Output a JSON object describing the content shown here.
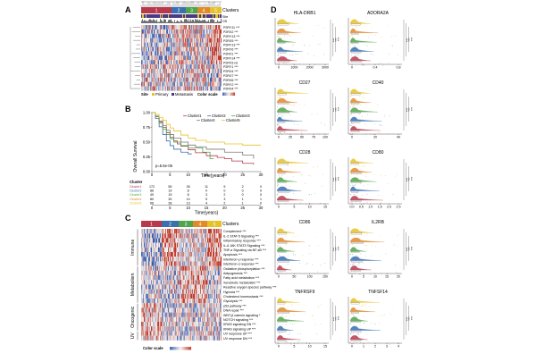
{
  "panels": {
    "a": "A",
    "b": "B",
    "c": "C",
    "d": "D"
  },
  "heatmap_a": {
    "cluster_numbers": [
      "1",
      "2",
      "3",
      "4",
      "5"
    ],
    "track_labels": [
      "Clusters",
      "Site",
      "OS"
    ],
    "genes": [
      {
        "name": "P2RY11",
        "sig": "***"
      },
      {
        "name": "P2RX2",
        "sig": "***"
      },
      {
        "name": "P2RY13",
        "sig": "***"
      },
      {
        "name": "P2RX5",
        "sig": "***"
      },
      {
        "name": "P2RY13",
        "sig": "***"
      },
      {
        "name": "P2RY6",
        "sig": "***"
      },
      {
        "name": "P2RX1",
        "sig": "***"
      },
      {
        "name": "P2RY14",
        "sig": "***"
      },
      {
        "name": "P2RX3",
        "sig": "ns"
      },
      {
        "name": "P2RY1",
        "sig": "***"
      },
      {
        "name": "P2RX4",
        "sig": "***"
      },
      {
        "name": "P2RX7",
        "sig": "***"
      },
      {
        "name": "P2RX6",
        "sig": "***"
      },
      {
        "name": "P2RY2",
        "sig": "***"
      },
      {
        "name": "P2RX4",
        "sig": "***"
      }
    ],
    "legend": {
      "site_label": "Site",
      "primary": "Primary",
      "metastasis": "Metastasis",
      "color_scale": "Color scale"
    }
  },
  "colors": {
    "c1": "#b8394b",
    "c2": "#3a6fb0",
    "c3": "#4fa54a",
    "c4": "#e08a2a",
    "c5": "#e6c229",
    "high": "#c0392b",
    "low": "#3b5ba9",
    "mid": "#f4f1ee"
  },
  "survival": {
    "ylabel": "Overall Survival",
    "xlabel": "Time(years)",
    "yticks": [
      "0.00",
      "0.25",
      "0.50",
      "0.75",
      "1.00"
    ],
    "xticks": [
      "0",
      "5",
      "10",
      "15",
      "20",
      "25",
      "30"
    ],
    "legend": [
      "Cluster1",
      "Cluster2",
      "Cluster3",
      "Cluster4",
      "Cluster5"
    ],
    "pvalue": "p=5.6e-05",
    "risk_title": "Cluster",
    "risk_rows": [
      {
        "label": "Cluster1",
        "values": [
          "172",
          "55",
          "26",
          "11",
          "5",
          "2",
          "0"
        ]
      },
      {
        "label": "Cluster2",
        "values": [
          "86",
          "19",
          "8",
          "0",
          "0",
          "0",
          "0"
        ]
      },
      {
        "label": "Cluster3",
        "values": [
          "49",
          "19",
          "8",
          "3",
          "2",
          "0",
          "0"
        ]
      },
      {
        "label": "Cluster4",
        "values": [
          "80",
          "30",
          "14",
          "5",
          "3",
          "1",
          "1"
        ]
      },
      {
        "label": "Cluster5",
        "values": [
          "66",
          "28",
          "13",
          "4",
          "2",
          "1",
          "0"
        ]
      }
    ]
  },
  "chart_data": {
    "type": "line",
    "title": "",
    "xlabel": "Time(years)",
    "ylabel": "Overall Survival",
    "xlim": [
      0,
      30
    ],
    "ylim": [
      0,
      1
    ],
    "series": [
      {
        "name": "Cluster1",
        "x": [
          0,
          1,
          2,
          3,
          4,
          5,
          6,
          7,
          8,
          10,
          12,
          15,
          18,
          20,
          22,
          25,
          28
        ],
        "y": [
          1,
          0.93,
          0.84,
          0.75,
          0.66,
          0.58,
          0.52,
          0.47,
          0.43,
          0.37,
          0.32,
          0.27,
          0.24,
          0.22,
          0.18,
          0.14,
          0.12
        ]
      },
      {
        "name": "Cluster2",
        "x": [
          0,
          1,
          2,
          3,
          4,
          5,
          6,
          8,
          10,
          11
        ],
        "y": [
          1,
          0.9,
          0.76,
          0.63,
          0.52,
          0.44,
          0.38,
          0.33,
          0.3,
          0.3
        ]
      },
      {
        "name": "Cluster3",
        "x": [
          0,
          1,
          2,
          3,
          4,
          5,
          6,
          8,
          10,
          14,
          16,
          17
        ],
        "y": [
          1,
          0.93,
          0.82,
          0.72,
          0.63,
          0.56,
          0.5,
          0.44,
          0.4,
          0.33,
          0.22,
          0.22
        ]
      },
      {
        "name": "Cluster4",
        "x": [
          0,
          1,
          2,
          3,
          4,
          5,
          6,
          8,
          10,
          12,
          15,
          20,
          25,
          28
        ],
        "y": [
          1,
          0.94,
          0.86,
          0.78,
          0.7,
          0.63,
          0.57,
          0.5,
          0.45,
          0.42,
          0.38,
          0.33,
          0.28,
          0.22
        ]
      },
      {
        "name": "Cluster5",
        "x": [
          0,
          1,
          2,
          3,
          4,
          5,
          6,
          8,
          10,
          12,
          15,
          20,
          25,
          30
        ],
        "y": [
          1,
          0.97,
          0.92,
          0.87,
          0.8,
          0.74,
          0.69,
          0.62,
          0.57,
          0.53,
          0.5,
          0.47,
          0.45,
          0.45
        ]
      }
    ]
  },
  "heatmap_c": {
    "cluster_numbers": [
      "1",
      "2",
      "3",
      "4",
      "5"
    ],
    "track_label": "Clusters",
    "groups": [
      "Immune",
      "Metabolism",
      "Oncogenic",
      "UV"
    ],
    "pathways": [
      {
        "name": "Complement",
        "sig": "***"
      },
      {
        "name": "IL-2 STAT-5 Signaling",
        "sig": "***"
      },
      {
        "name": "Inflammatory response",
        "sig": "***"
      },
      {
        "name": "IL-6 JAK STAT3 Signaling",
        "sig": "***"
      },
      {
        "name": "TNF-α Signaling via NF-κB",
        "sig": "***"
      },
      {
        "name": "Apoptosis",
        "sig": "***"
      },
      {
        "name": "Interferon-γ response",
        "sig": "***"
      },
      {
        "name": "Interferon-α response",
        "sig": "***"
      },
      {
        "name": "Oxidative phosphorylation",
        "sig": "***"
      },
      {
        "name": "Adipogenesis",
        "sig": "***"
      },
      {
        "name": "Fatty acid metabolism",
        "sig": "***"
      },
      {
        "name": "Xenobiotic metabolism",
        "sig": "***"
      },
      {
        "name": "Reactive oxygen species pathway",
        "sig": "***"
      },
      {
        "name": "Hypoxia",
        "sig": "***"
      },
      {
        "name": "Cholesterol homeostasis",
        "sig": "***"
      },
      {
        "name": "Glycolysis",
        "sig": "***"
      },
      {
        "name": "p53 pathway",
        "sig": "***"
      },
      {
        "name": "DNA repair",
        "sig": "***"
      },
      {
        "name": "WNT-β catenin signaling",
        "sig": "*"
      },
      {
        "name": "NOTCH signaling",
        "sig": "***"
      },
      {
        "name": "KRAS signaling DN",
        "sig": "***"
      },
      {
        "name": "KRAS signaling UP",
        "sig": "***"
      },
      {
        "name": "UV response UP",
        "sig": "***"
      },
      {
        "name": "UV response DN",
        "sig": "***"
      }
    ],
    "group_counts": [
      8,
      8,
      6,
      2
    ],
    "color_scale": "Color scale"
  },
  "raincloud": {
    "panels": [
      {
        "title": "HLA-DRB1",
        "ticks": [
          "0",
          "1000",
          "2000",
          "3000"
        ],
        "sigs": [
          "***",
          "***",
          "***"
        ]
      },
      {
        "title": "ADORA2A",
        "ticks": [
          "0",
          "0.4",
          "0.8"
        ],
        "sigs": [
          "***",
          "***",
          "***"
        ]
      },
      {
        "title": "CD27",
        "ticks": [
          "0",
          "25",
          "50",
          "75",
          "100"
        ],
        "sigs": [
          "***",
          "***",
          "***"
        ]
      },
      {
        "title": "CD40",
        "ticks": [
          "0",
          "20",
          "40"
        ],
        "sigs": [
          "***",
          "***",
          "***"
        ]
      },
      {
        "title": "CD28",
        "ticks": [
          "0",
          "5",
          "10",
          "15"
        ],
        "sigs": [
          "***",
          "***",
          "***"
        ]
      },
      {
        "title": "CD80",
        "ticks": [
          "0.0",
          "0.5",
          "1.0",
          "1.5",
          "2.0",
          "2.5"
        ],
        "sigs": [
          "***",
          "***",
          "***"
        ]
      },
      {
        "title": "CD86",
        "ticks": [
          "0",
          "50",
          "100",
          "150"
        ],
        "sigs": [
          "***",
          "***",
          "***"
        ]
      },
      {
        "title": "IL2RB",
        "ticks": [
          "0",
          "5",
          "10",
          "15",
          "20"
        ],
        "sigs": [
          "***",
          "***",
          "***"
        ]
      },
      {
        "title": "TNFRSF9",
        "ticks": [
          "0",
          "5",
          "10",
          "15"
        ],
        "sigs": [
          "***",
          "***",
          "***"
        ]
      },
      {
        "title": "TNFSF14",
        "ticks": [
          "0",
          "1",
          "2",
          "3",
          "4"
        ],
        "sigs": [
          "***",
          "***",
          "***"
        ]
      }
    ]
  }
}
